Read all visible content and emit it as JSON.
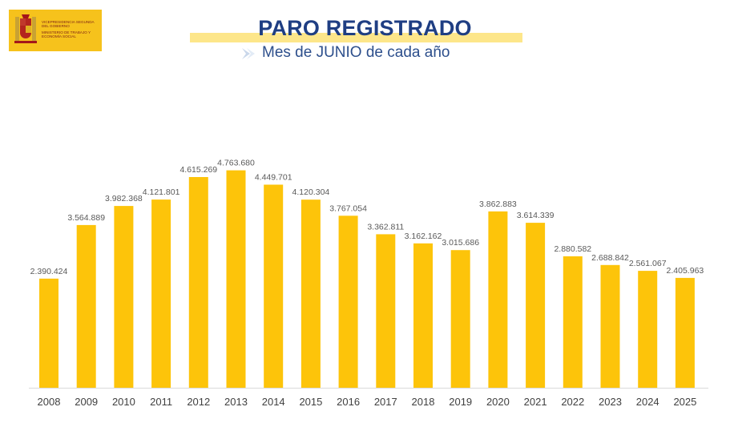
{
  "header": {
    "logo_lines": [
      "Vicepresidencia Segunda del Gobierno",
      "Ministerio de Trabajo y Economía Social"
    ],
    "title": "PARO REGISTRADO",
    "subtitle": "Mes de JUNIO de cada año"
  },
  "colors": {
    "bar": "#fdc40a",
    "title": "#1f3e83",
    "subtitle": "#2d4f8c",
    "highlight": "#fde68a",
    "logo_bg": "#f6c21c"
  },
  "chart_data": {
    "type": "bar",
    "title": "PARO REGISTRADO",
    "subtitle": "Mes de JUNIO de cada año",
    "xlabel": "",
    "ylabel": "",
    "grid": false,
    "ylim": [
      0,
      5300000
    ],
    "categories": [
      "2008",
      "2009",
      "2010",
      "2011",
      "2012",
      "2013",
      "2014",
      "2015",
      "2016",
      "2017",
      "2018",
      "2019",
      "2020",
      "2021",
      "2022",
      "2023",
      "2024",
      "2025"
    ],
    "values": [
      2390424,
      3564889,
      3982368,
      4121801,
      4615269,
      4763680,
      4449701,
      4120304,
      3767054,
      3362811,
      3162162,
      3015686,
      3862883,
      3614339,
      2880582,
      2688842,
      2561067,
      2405963
    ],
    "labels": [
      "2.390.424",
      "3.564.889",
      "3.982.368",
      "4.121.801",
      "4.615.269",
      "4.763.680",
      "4.449.701",
      "4.120.304",
      "3.767.054",
      "3.362.811",
      "3.162.162",
      "3.015.686",
      "3.862.883",
      "3.614.339",
      "2.880.582",
      "2.688.842",
      "2.561.067",
      "2.405.963"
    ]
  }
}
